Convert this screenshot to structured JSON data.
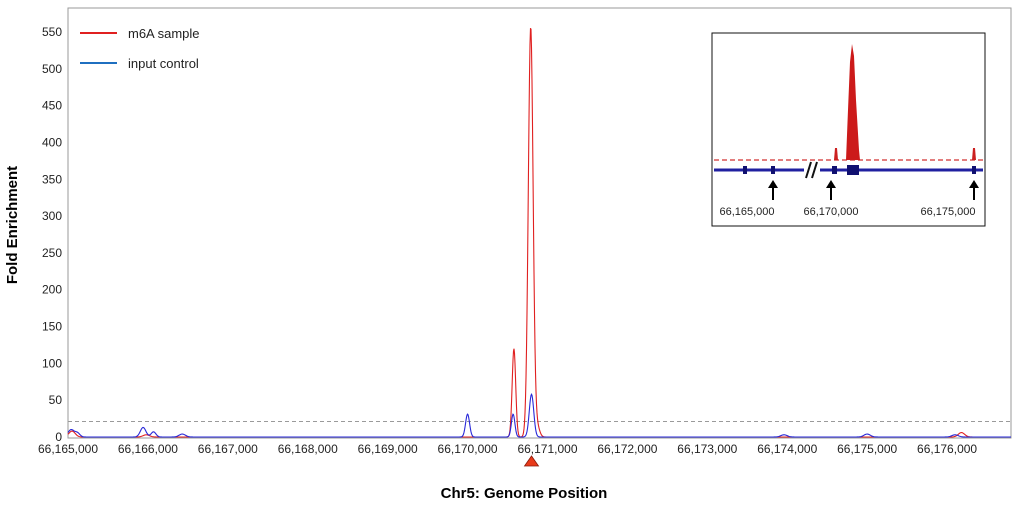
{
  "chart_data": {
    "type": "line",
    "title": "",
    "xlabel": "Chr5: Genome Position",
    "ylabel": "Fold Enrichment",
    "xlim": [
      66165000,
      66176800
    ],
    "ylim": [
      0,
      580
    ],
    "yticks": [
      0,
      50,
      100,
      150,
      200,
      250,
      300,
      350,
      400,
      450,
      500,
      550
    ],
    "xticks": [
      66165000,
      66166000,
      66167000,
      66168000,
      66169000,
      66170000,
      66171000,
      66172000,
      66173000,
      66174000,
      66175000,
      66176000
    ],
    "ytick_labels": [
      "0",
      "50",
      "100",
      "150",
      "200",
      "250",
      "300",
      "350",
      "400",
      "450",
      "500",
      "550"
    ],
    "xtick_labels": [
      "66,165,000",
      "66,166,000",
      "66,167,000",
      "66,168,000",
      "66,169,000",
      "66,170,000",
      "66,171,000",
      "66,172,000",
      "66,173,000",
      "66,174,000",
      "66,175,000",
      "66,176,000"
    ],
    "threshold": 21,
    "marker_position": 66170800,
    "legend_position": "top-left",
    "grid": false,
    "series": [
      {
        "name": "m6A sample",
        "color": "#e02020",
        "peaks": [
          {
            "x": 66165050,
            "height": 8,
            "width": 40
          },
          {
            "x": 66165980,
            "height": 3,
            "width": 40
          },
          {
            "x": 66170580,
            "height": 120,
            "width": 22
          },
          {
            "x": 66170790,
            "height": 557,
            "width": 30
          },
          {
            "x": 66170870,
            "height": 15,
            "width": 30
          },
          {
            "x": 66176180,
            "height": 6,
            "width": 40
          }
        ]
      },
      {
        "name": "input control",
        "color": "#2828d8",
        "peaks": [
          {
            "x": 66165040,
            "height": 10,
            "width": 40
          },
          {
            "x": 66165120,
            "height": 5,
            "width": 30
          },
          {
            "x": 66165940,
            "height": 13,
            "width": 35
          },
          {
            "x": 66166070,
            "height": 7,
            "width": 30
          },
          {
            "x": 66166430,
            "height": 4,
            "width": 40
          },
          {
            "x": 66170000,
            "height": 31,
            "width": 25
          },
          {
            "x": 66170570,
            "height": 31,
            "width": 22
          },
          {
            "x": 66170800,
            "height": 58,
            "width": 28
          },
          {
            "x": 66173960,
            "height": 3,
            "width": 40
          },
          {
            "x": 66175000,
            "height": 4,
            "width": 40
          },
          {
            "x": 66176100,
            "height": 3,
            "width": 40
          }
        ]
      }
    ]
  },
  "legend": {
    "items": [
      {
        "label": "m6A sample",
        "color": "#e02020"
      },
      {
        "label": "input control",
        "color": "#1f6fc0"
      }
    ]
  },
  "inset": {
    "labels": [
      "66,165,000",
      "66,170,000",
      "66,175,000"
    ]
  }
}
